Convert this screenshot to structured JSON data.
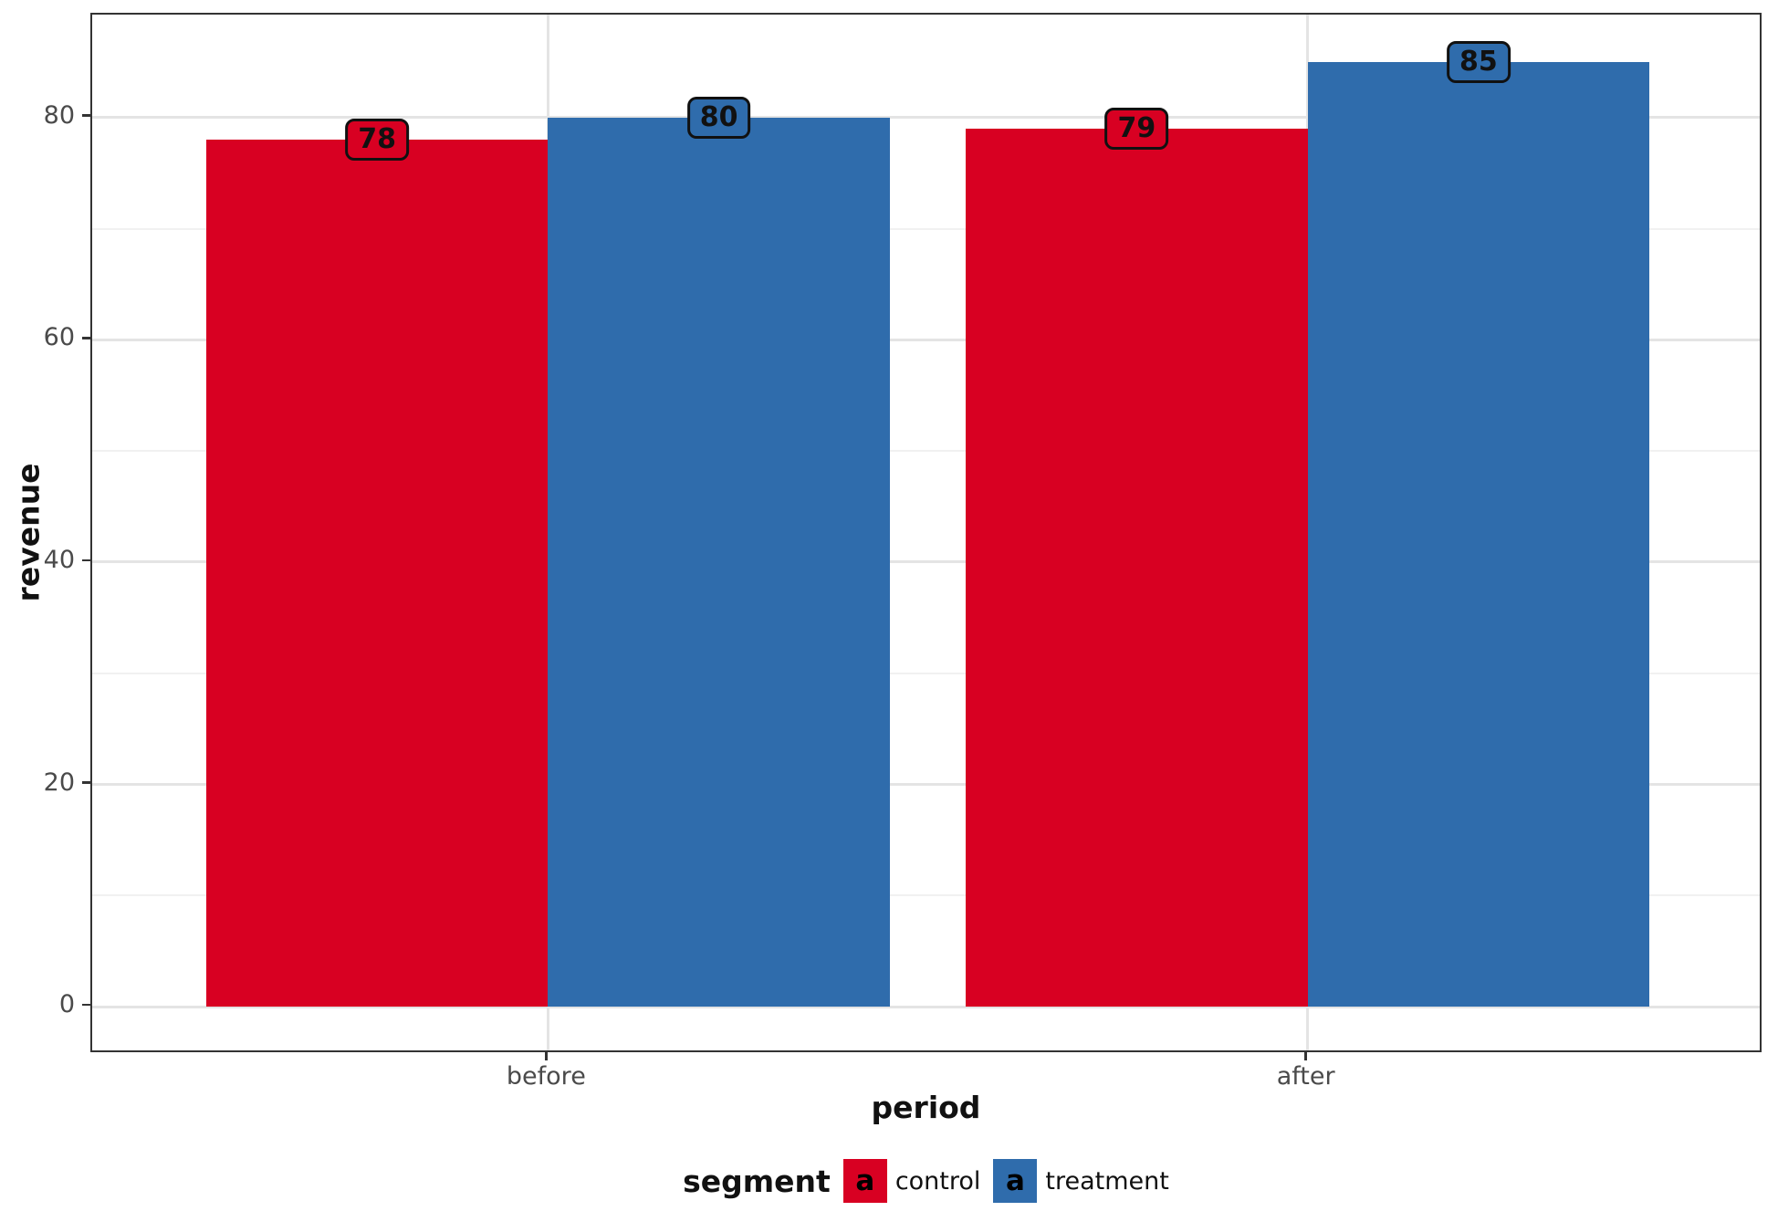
{
  "chart_data": {
    "type": "bar",
    "title": "",
    "xlabel": "period",
    "ylabel": "revenue",
    "categories": [
      "before",
      "after"
    ],
    "series": [
      {
        "name": "control",
        "color": "#D80022",
        "values": [
          78,
          79
        ]
      },
      {
        "name": "treatment",
        "color": "#2F6CAC",
        "values": [
          80,
          85
        ]
      }
    ],
    "bar_value_labels_shown": true,
    "y_ticks": [
      0,
      20,
      40,
      60,
      80
    ],
    "y_minor_ticks": [
      10,
      30,
      50,
      70
    ],
    "ylim": [
      -4.25,
      89.25
    ],
    "grid": "horizontal major+minor, vertical major at category centers",
    "legend": {
      "title": "segment",
      "position": "bottom",
      "key_glyph": "a",
      "entries": [
        "control",
        "treatment"
      ]
    }
  },
  "style_colors": {
    "background": "#FFFFFF",
    "panel_border": "#333333",
    "grid_major": "#E4E4E4",
    "grid_minor": "#F1F1F1",
    "tick_mark": "#333333",
    "tick_label": "#4A4A4A",
    "axis_title": "#111111",
    "bar_label_text": "#111111"
  }
}
